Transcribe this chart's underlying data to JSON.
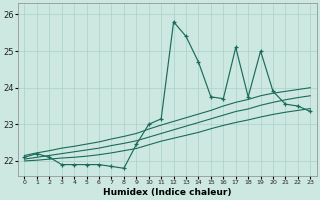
{
  "xlabel": "Humidex (Indice chaleur)",
  "x": [
    0,
    1,
    2,
    3,
    4,
    5,
    6,
    7,
    8,
    9,
    10,
    11,
    12,
    13,
    14,
    15,
    16,
    17,
    18,
    19,
    20,
    21,
    22,
    23
  ],
  "y_main": [
    22.1,
    22.2,
    22.1,
    21.9,
    21.9,
    21.9,
    21.9,
    21.85,
    21.8,
    22.45,
    23.0,
    23.15,
    25.8,
    25.4,
    24.7,
    23.75,
    23.7,
    25.1,
    23.75,
    25.0,
    23.9,
    23.55,
    23.5,
    23.35
  ],
  "y_avg": [
    22.05,
    22.1,
    22.15,
    22.2,
    22.25,
    22.3,
    22.35,
    22.42,
    22.48,
    22.55,
    22.65,
    22.75,
    22.85,
    22.95,
    23.05,
    23.15,
    23.25,
    23.35,
    23.42,
    23.52,
    23.6,
    23.67,
    23.73,
    23.78
  ],
  "y_upper": [
    22.15,
    22.22,
    22.28,
    22.35,
    22.4,
    22.46,
    22.52,
    22.6,
    22.67,
    22.75,
    22.87,
    22.98,
    23.08,
    23.18,
    23.28,
    23.38,
    23.5,
    23.6,
    23.68,
    23.78,
    23.85,
    23.9,
    23.95,
    24.0
  ],
  "y_lower": [
    22.0,
    22.02,
    22.05,
    22.08,
    22.1,
    22.13,
    22.17,
    22.22,
    22.28,
    22.34,
    22.44,
    22.54,
    22.62,
    22.7,
    22.78,
    22.88,
    22.97,
    23.05,
    23.12,
    23.2,
    23.27,
    23.33,
    23.38,
    23.43
  ],
  "color": "#1a6b5a",
  "bg_color": "#cde8e0",
  "grid_color": "#b0d4cc",
  "ylim": [
    21.6,
    26.3
  ],
  "yticks": [
    22,
    23,
    24,
    25,
    26
  ],
  "xticks": [
    0,
    1,
    2,
    3,
    4,
    5,
    6,
    7,
    8,
    9,
    10,
    11,
    12,
    13,
    14,
    15,
    16,
    17,
    18,
    19,
    20,
    21,
    22,
    23
  ]
}
